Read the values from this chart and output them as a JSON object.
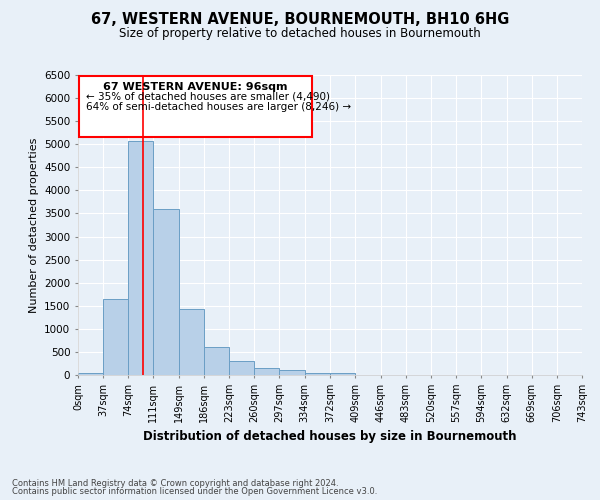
{
  "title": "67, WESTERN AVENUE, BOURNEMOUTH, BH10 6HG",
  "subtitle": "Size of property relative to detached houses in Bournemouth",
  "xlabel": "Distribution of detached houses by size in Bournemouth",
  "ylabel": "Number of detached properties",
  "bar_edges": [
    0,
    37,
    74,
    111,
    149,
    186,
    223,
    260,
    297,
    334,
    372,
    409,
    446,
    483,
    520,
    557,
    594,
    632,
    669,
    706,
    743
  ],
  "bar_heights": [
    50,
    1650,
    5080,
    3590,
    1420,
    615,
    300,
    150,
    100,
    50,
    50,
    0,
    0,
    0,
    0,
    0,
    0,
    0,
    0,
    0
  ],
  "bar_color": "#b8d0e8",
  "bar_edge_color": "#6a9ec5",
  "property_line_x": 96,
  "property_line_color": "red",
  "ylim": [
    0,
    6500
  ],
  "yticks": [
    0,
    500,
    1000,
    1500,
    2000,
    2500,
    3000,
    3500,
    4000,
    4500,
    5000,
    5500,
    6000,
    6500
  ],
  "xtick_labels": [
    "0sqm",
    "37sqm",
    "74sqm",
    "111sqm",
    "149sqm",
    "186sqm",
    "223sqm",
    "260sqm",
    "297sqm",
    "334sqm",
    "372sqm",
    "409sqm",
    "446sqm",
    "483sqm",
    "520sqm",
    "557sqm",
    "594sqm",
    "632sqm",
    "669sqm",
    "706sqm",
    "743sqm"
  ],
  "annotation_title": "67 WESTERN AVENUE: 96sqm",
  "annotation_line1": "← 35% of detached houses are smaller (4,490)",
  "annotation_line2": "64% of semi-detached houses are larger (8,246) →",
  "footer1": "Contains HM Land Registry data © Crown copyright and database right 2024.",
  "footer2": "Contains public sector information licensed under the Open Government Licence v3.0.",
  "background_color": "#e8f0f8",
  "grid_color": "white"
}
